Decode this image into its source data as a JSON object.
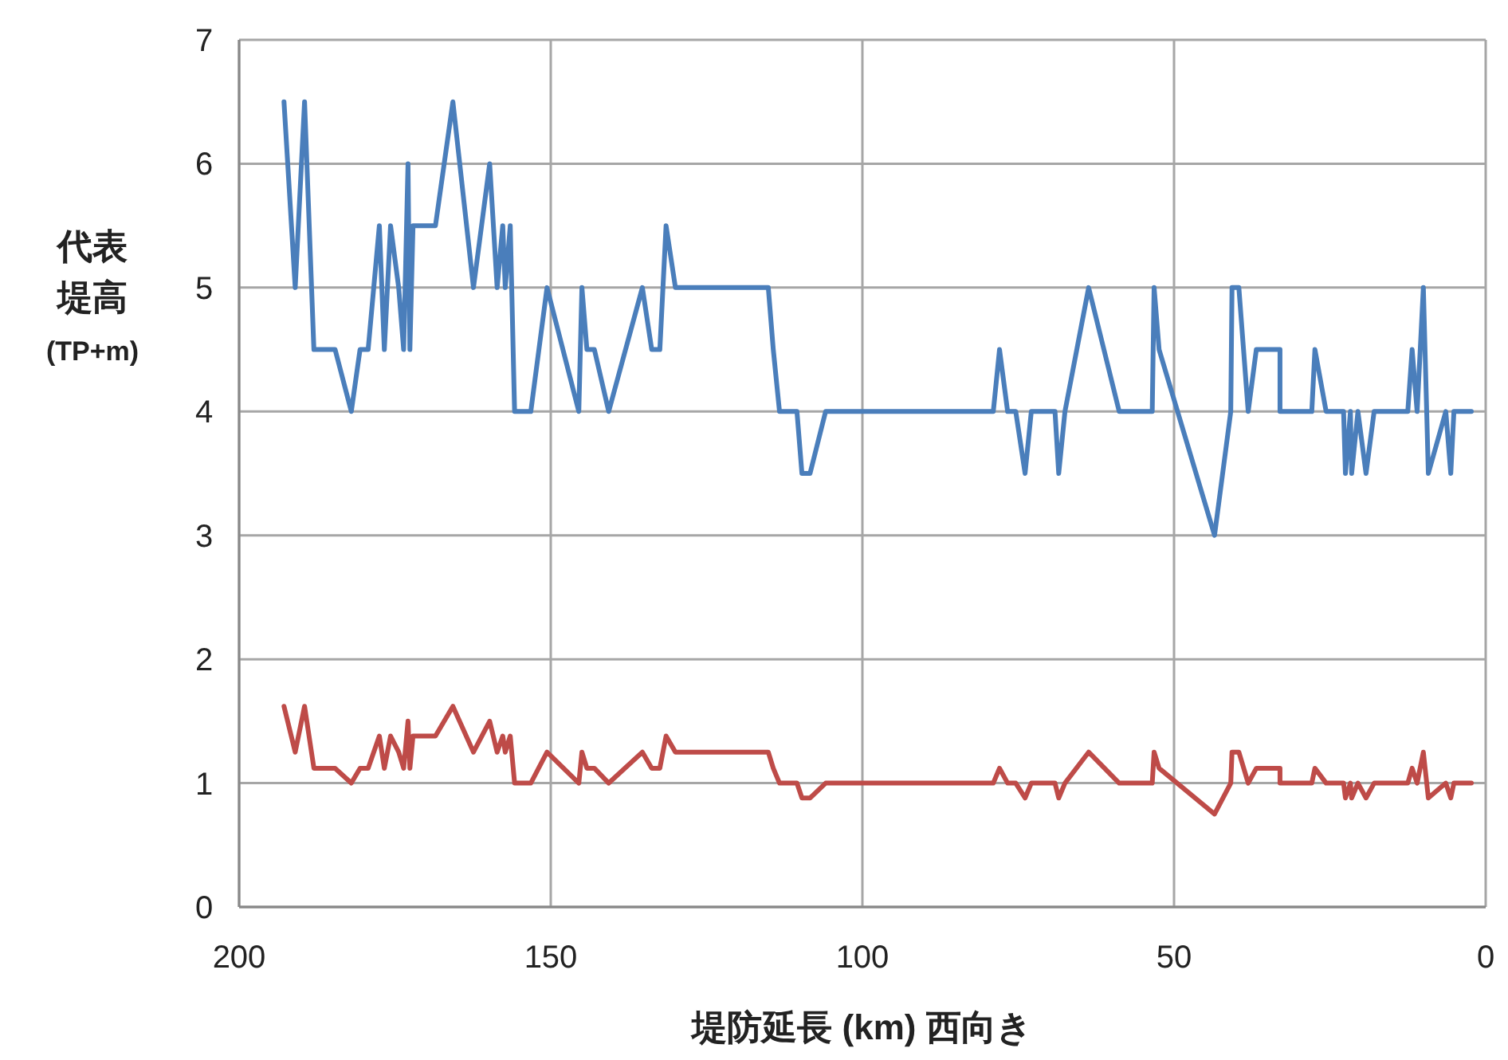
{
  "chart_data": {
    "type": "line",
    "xlabel": "堤防延長 (km) 西向き",
    "ylabel": "代表堤高(TP+m)",
    "xlim": [
      200,
      0
    ],
    "xticks": [
      200,
      150,
      100,
      50,
      0
    ],
    "ylim": [
      0,
      7
    ],
    "yticks": [
      0,
      1,
      2,
      3,
      4,
      5,
      6,
      7
    ],
    "grid": true,
    "marker": "none",
    "line_style": "solid",
    "x": [
      192.8,
      191,
      189.5,
      188,
      184.6,
      182,
      180.6,
      179.3,
      177.5,
      176.7,
      175.7,
      174.4,
      173.6,
      172.9,
      172.6,
      172.1,
      168.5,
      165.7,
      162.4,
      159.8,
      158.6,
      157.7,
      157.3,
      156.5,
      155.8,
      153.2,
      150.6,
      145.5,
      145,
      144.2,
      143,
      140.7,
      135.3,
      133.8,
      132.5,
      131.5,
      130,
      115.1,
      114.3,
      113.3,
      110.5,
      109.7,
      108.4,
      105.9,
      79,
      78,
      76.7,
      75.4,
      73.9,
      72.9,
      69.1,
      68.5,
      67.5,
      63.7,
      58.8,
      53.5,
      53.2,
      52.4,
      43.5,
      40.9,
      40.7,
      39.6,
      38.1,
      36.8,
      33,
      33,
      27.9,
      27.4,
      25.6,
      22.8,
      22.5,
      21.7,
      21.5,
      20.5,
      19.2,
      17.9,
      12.5,
      11.8,
      11,
      10,
      9.2,
      6.4,
      5.6,
      5.1,
      2.3
    ],
    "series": [
      {
        "color": "#4a7ebb",
        "values": [
          6.5,
          5,
          6.5,
          4.5,
          4.5,
          4,
          4.5,
          4.5,
          5.5,
          4.5,
          5.5,
          5,
          4.5,
          6,
          4.5,
          5.5,
          5.5,
          6.5,
          5,
          6,
          5,
          5.5,
          5,
          5.5,
          4,
          4,
          5,
          4,
          5,
          4.5,
          4.5,
          4,
          5,
          4.5,
          4.5,
          5.5,
          5,
          5,
          4.5,
          4,
          4,
          3.5,
          3.5,
          4,
          4,
          4.5,
          4,
          4,
          3.5,
          4,
          4,
          3.5,
          4,
          5,
          4,
          4,
          5,
          4.5,
          3,
          4,
          5,
          5,
          4,
          4.5,
          4.5,
          4,
          4,
          4.5,
          4,
          4,
          3.5,
          4,
          3.5,
          4,
          3.5,
          4,
          4,
          4.5,
          4,
          5,
          3.5,
          4,
          3.5,
          4,
          4
        ]
      },
      {
        "color": "#be4b48",
        "values": [
          1.62,
          1.25,
          1.62,
          1.12,
          1.12,
          1,
          1.12,
          1.12,
          1.38,
          1.12,
          1.38,
          1.25,
          1.12,
          1.5,
          1.12,
          1.38,
          1.38,
          1.62,
          1.25,
          1.5,
          1.25,
          1.38,
          1.25,
          1.38,
          1,
          1,
          1.25,
          1,
          1.25,
          1.12,
          1.12,
          1,
          1.25,
          1.12,
          1.12,
          1.38,
          1.25,
          1.25,
          1.12,
          1,
          1,
          0.88,
          0.88,
          1,
          1,
          1.12,
          1,
          1,
          0.88,
          1,
          1,
          0.88,
          1,
          1.25,
          1,
          1,
          1.25,
          1.12,
          0.75,
          1,
          1.25,
          1.25,
          1,
          1.12,
          1.12,
          1,
          1,
          1.12,
          1,
          1,
          0.88,
          1,
          0.88,
          1,
          0.88,
          1,
          1,
          1.12,
          1,
          1.25,
          0.88,
          1,
          0.88,
          1,
          1
        ]
      }
    ]
  }
}
